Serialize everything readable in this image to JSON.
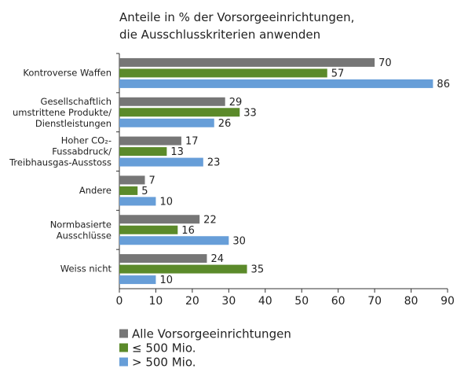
{
  "chart_data": {
    "type": "hbar",
    "title": "Anteile in % der Vorsorgeeinrichtungen,\ndie Ausschlusskriterien anwenden",
    "categories": [
      "Kontroverse Waffen",
      "Gesellschaftlich\numstrittene Produkte/\nDienstleistungen",
      "Hoher CO₂-\nFussabdruck/\nTreibhausgas-Ausstoss",
      "Andere",
      "Normbasierte\nAusschlüsse",
      "Weiss nicht"
    ],
    "series": [
      {
        "name": "Alle Vorsorgeeinrichtungen",
        "color": "#767676",
        "values": [
          70,
          29,
          17,
          7,
          22,
          24
        ]
      },
      {
        "name": "≤ 500 Mio.",
        "color": "#5b8a2a",
        "values": [
          57,
          33,
          13,
          5,
          16,
          35
        ]
      },
      {
        "name": "> 500 Mio.",
        "color": "#679ed8",
        "values": [
          86,
          26,
          23,
          10,
          30,
          10
        ]
      }
    ],
    "xlim": [
      0,
      90
    ],
    "xticks": [
      0,
      10,
      20,
      30,
      40,
      50,
      60,
      70,
      80,
      90
    ],
    "legend": "bottom-left"
  }
}
